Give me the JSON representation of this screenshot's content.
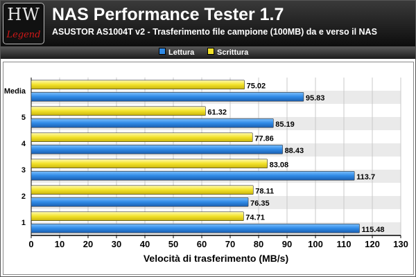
{
  "header": {
    "logo_top": "HW",
    "logo_bottom": "Legend",
    "title": "NAS Performance Tester 1.7",
    "subtitle": "ASUSTOR AS1004T v2 - Trasferimento file campione (100MB) da e verso il NAS"
  },
  "colors": {
    "lettura": "#2f8ae6",
    "scrittura": "#f2e22a",
    "band": "#eaeaea",
    "header_bg": "#1a1a1a"
  },
  "chart_data": {
    "type": "bar",
    "orientation": "horizontal",
    "title": "NAS Performance Tester 1.7",
    "subtitle": "ASUSTOR AS1004T v2 - Trasferimento file campione (100MB) da e verso il NAS",
    "categories": [
      "Media",
      "5",
      "4",
      "3",
      "2",
      "1"
    ],
    "series": [
      {
        "name": "Scrittura",
        "color": "#f2e22a",
        "values": [
          75.02,
          61.32,
          77.86,
          83.08,
          78.11,
          74.71
        ]
      },
      {
        "name": "Lettura",
        "color": "#2f8ae6",
        "values": [
          95.83,
          85.19,
          88.43,
          113.7,
          76.35,
          115.48
        ]
      }
    ],
    "legend": [
      "Lettura",
      "Scrittura"
    ],
    "legend_position": "top-center",
    "xlabel": "Velocità di trasferimento (MB/s)",
    "ylabel": "",
    "xlim": [
      0,
      130
    ],
    "xticks": [
      0,
      10,
      20,
      30,
      40,
      50,
      60,
      70,
      80,
      90,
      100,
      110,
      120,
      130
    ],
    "grid": true,
    "data_labels": true
  }
}
